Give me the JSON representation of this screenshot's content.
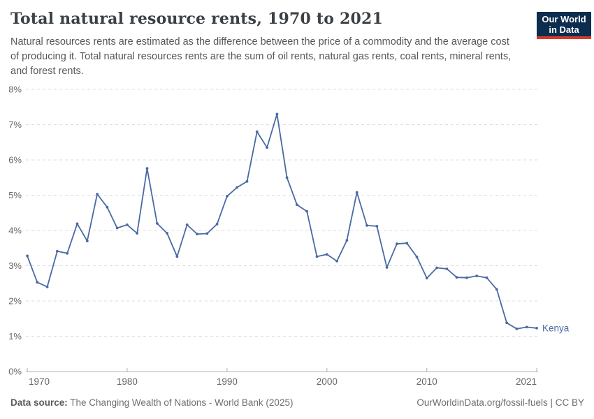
{
  "header": {
    "title": "Total natural resource rents, 1970 to 2021",
    "subtitle": "Natural resources rents are estimated as the difference between the price of a commodity and the average cost of producing it. Total natural resources rents are the sum of oil rents, natural gas rents, coal rents, mineral rents, and forest rents.",
    "logo": {
      "line1": "Our World",
      "line2": "in Data",
      "bg_color": "#0d2d4e",
      "stripe_color": "#d93a2b"
    }
  },
  "chart_data": {
    "type": "line",
    "title": "Total natural resource rents, 1970 to 2021",
    "x": [
      1970,
      1971,
      1972,
      1973,
      1974,
      1975,
      1976,
      1977,
      1978,
      1979,
      1980,
      1981,
      1982,
      1983,
      1984,
      1985,
      1986,
      1987,
      1988,
      1989,
      1990,
      1991,
      1992,
      1993,
      1994,
      1995,
      1996,
      1997,
      1998,
      1999,
      2000,
      2001,
      2002,
      2003,
      2004,
      2005,
      2006,
      2007,
      2008,
      2009,
      2010,
      2011,
      2012,
      2013,
      2014,
      2015,
      2016,
      2017,
      2018,
      2019,
      2020,
      2021
    ],
    "series": [
      {
        "name": "Kenya",
        "color": "#4a69a4",
        "values": [
          3.28,
          2.53,
          2.4,
          3.41,
          3.35,
          4.19,
          3.7,
          5.03,
          4.66,
          4.07,
          4.16,
          3.92,
          5.76,
          4.2,
          3.92,
          3.26,
          4.16,
          3.9,
          3.91,
          4.18,
          4.97,
          5.22,
          5.39,
          6.8,
          6.35,
          7.3,
          5.5,
          4.73,
          4.54,
          3.26,
          3.32,
          3.13,
          3.72,
          5.08,
          4.14,
          4.12,
          2.95,
          3.62,
          3.64,
          3.25,
          2.65,
          2.94,
          2.91,
          2.67,
          2.66,
          2.71,
          2.66,
          2.33,
          1.38,
          1.21,
          1.26,
          1.23
        ]
      }
    ],
    "xlabel": "",
    "ylabel": "",
    "xlim": [
      1970,
      2021
    ],
    "ylim": [
      0,
      8
    ],
    "yticks": [
      "0%",
      "1%",
      "2%",
      "3%",
      "4%",
      "5%",
      "6%",
      "7%",
      "8%"
    ],
    "ytick_values": [
      0,
      1,
      2,
      3,
      4,
      5,
      6,
      7,
      8
    ],
    "xticks": [
      1970,
      1980,
      1990,
      2000,
      2010,
      2021
    ],
    "grid": "horizontal-dashed",
    "legend_position": "end-of-line-label",
    "grid_color": "#dcdcdc",
    "axis_color": "#b0b0b0",
    "tick_label_color": "#666666"
  },
  "footer": {
    "source_label": "Data source:",
    "source_text": " The Changing Wealth of Nations - World Bank (2025)",
    "right_text": "OurWorldinData.org/fossil-fuels | CC BY"
  }
}
